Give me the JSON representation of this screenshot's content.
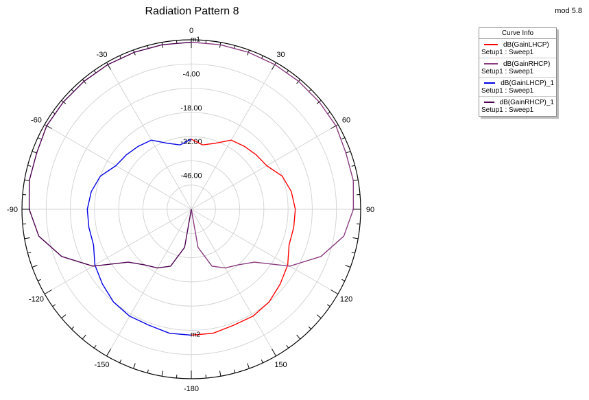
{
  "title": "Radiation Pattern 8",
  "corner_label": "mod 5.8",
  "legend": {
    "header": "Curve Info",
    "items": [
      {
        "name": "dB(GainLHCP)",
        "setup": "Setup1 : Sweep1",
        "color": "#ff0000"
      },
      {
        "name": "dB(GainRHCP)",
        "setup": "Setup1 : Sweep1",
        "color": "#8a3a80"
      },
      {
        "name": "dB(GainLHCP)_1",
        "setup": "Setup1 : Sweep1",
        "color": "#0000e6"
      },
      {
        "name": "dB(GainRHCP)_1",
        "setup": "Setup1 : Sweep1",
        "color": "#4d0050"
      }
    ]
  },
  "chart_data": {
    "type": "polar",
    "title": "Radiation Pattern 8",
    "radial_range": [
      -60,
      10
    ],
    "radial_ticks": [
      -46,
      -32,
      -18,
      -4
    ],
    "radial_tick_labels": [
      "-46.00",
      "-32.00",
      "-18.00",
      "-4.00"
    ],
    "angle_ticks": [
      0,
      30,
      60,
      90,
      120,
      150,
      -180,
      -150,
      -120,
      -90,
      -60,
      -30
    ],
    "angle_tick_labels": [
      "0",
      "30",
      "60",
      "90",
      "120",
      "150",
      "-180",
      "-150",
      "-120",
      "-90",
      "-60",
      "-30"
    ],
    "markers": [
      {
        "label": "m1",
        "angle": 0,
        "value": 9
      },
      {
        "label": "m2",
        "angle": 180,
        "value": -8
      }
    ],
    "series": [
      {
        "name": "dB(GainLHCP)",
        "color": "#ff0000",
        "angles": [
          0,
          10,
          20,
          30,
          40,
          50,
          60,
          70,
          80,
          90,
          100,
          110,
          120,
          130,
          140,
          150,
          160,
          170,
          180
        ],
        "values": [
          -31,
          -33,
          -31,
          -27,
          -26,
          -25,
          -24,
          -20,
          -18,
          -17,
          -17,
          -17,
          -14,
          -12,
          -10,
          -9,
          -9,
          -8,
          -8
        ]
      },
      {
        "name": "dB(GainRHCP)",
        "color": "#8a3a80",
        "angles": [
          0,
          10,
          20,
          30,
          40,
          50,
          60,
          70,
          80,
          90,
          100,
          110,
          120,
          130,
          140,
          150,
          160,
          170,
          180
        ],
        "values": [
          9,
          9,
          9,
          9,
          9,
          9,
          9,
          8,
          8,
          7,
          4,
          -3,
          -13,
          -26,
          -30,
          -32,
          -35,
          -44,
          -60
        ]
      },
      {
        "name": "dB(GainLHCP)_1",
        "color": "#0000e6",
        "angles": [
          0,
          -10,
          -20,
          -30,
          -40,
          -50,
          -60,
          -70,
          -80,
          -90,
          -100,
          -110,
          -120,
          -130,
          -140,
          -150,
          -160,
          -170,
          -180
        ],
        "values": [
          -31,
          -33,
          -31,
          -27,
          -26,
          -25,
          -24,
          -20,
          -18,
          -17,
          -17,
          -17,
          -14,
          -12,
          -10,
          -9,
          -9,
          -8,
          -8
        ]
      },
      {
        "name": "dB(GainRHCP)_1",
        "color": "#4d0050",
        "angles": [
          0,
          -10,
          -20,
          -30,
          -40,
          -50,
          -60,
          -70,
          -80,
          -90,
          -100,
          -110,
          -120,
          -130,
          -140,
          -150,
          -160,
          -170,
          -180
        ],
        "values": [
          9,
          9,
          9,
          9,
          9,
          9,
          9,
          8,
          8,
          7,
          4,
          -3,
          -13,
          -26,
          -30,
          -32,
          -35,
          -44,
          -60
        ]
      }
    ]
  }
}
